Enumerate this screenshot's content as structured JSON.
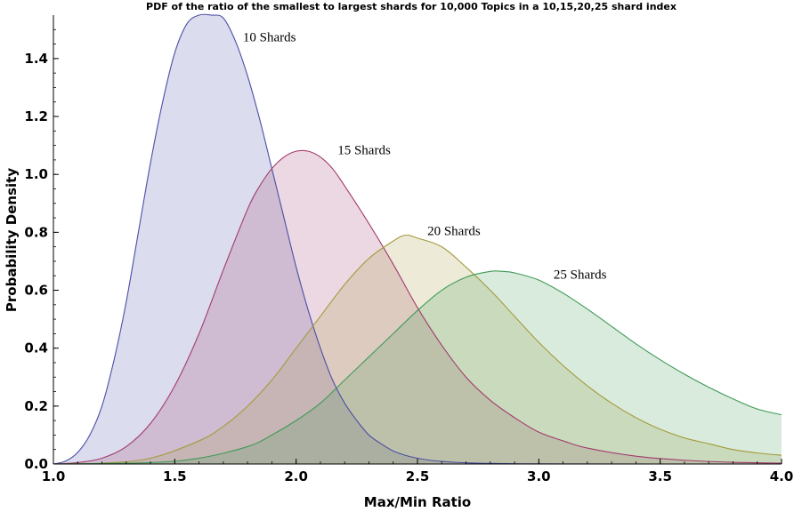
{
  "chart_data": {
    "type": "area",
    "title": "PDF of the ratio of the smallest to largest shards for 10,000 Topics in a 10,15,20,25 shard index",
    "xlabel": "Max/Min Ratio",
    "ylabel": "Probability Density",
    "xlim": [
      1.0,
      4.0
    ],
    "ylim": [
      0.0,
      1.55
    ],
    "x_ticks": [
      "1.0",
      "1.5",
      "2.0",
      "2.5",
      "3.0",
      "3.5",
      "4.0"
    ],
    "y_ticks": [
      "0.0",
      "0.2",
      "0.4",
      "0.6",
      "0.8",
      "1.0",
      "1.2",
      "1.4"
    ],
    "grid": false,
    "legend": "inline labels",
    "series": [
      {
        "name": "10 Shards",
        "color": "#4b4fa6",
        "fill": "#dcdcee",
        "label_at": [
          1.89,
          1.46
        ],
        "x": [
          1.0,
          1.05,
          1.1,
          1.15,
          1.2,
          1.25,
          1.3,
          1.35,
          1.4,
          1.45,
          1.5,
          1.55,
          1.6,
          1.65,
          1.7,
          1.75,
          1.8,
          1.85,
          1.9,
          1.95,
          2.0,
          2.05,
          2.1,
          2.15,
          2.2,
          2.25,
          2.3,
          2.35,
          2.4,
          2.45,
          2.5,
          2.55,
          2.6,
          2.7,
          2.8,
          2.9,
          3.0,
          3.2,
          3.5,
          4.0
        ],
        "y": [
          0.0,
          0.01,
          0.04,
          0.1,
          0.2,
          0.36,
          0.56,
          0.8,
          1.04,
          1.25,
          1.42,
          1.52,
          1.56,
          1.56,
          1.54,
          1.46,
          1.34,
          1.19,
          1.02,
          0.85,
          0.68,
          0.53,
          0.4,
          0.29,
          0.21,
          0.15,
          0.1,
          0.07,
          0.045,
          0.03,
          0.02,
          0.013,
          0.009,
          0.004,
          0.002,
          0.001,
          0.0005,
          0.0001,
          0.0,
          0.0
        ]
      },
      {
        "name": "15 Shards",
        "color": "#a23a6e",
        "fill": "#eed9e6",
        "label_at": [
          2.28,
          1.07
        ],
        "x": [
          1.0,
          1.1,
          1.2,
          1.3,
          1.4,
          1.5,
          1.6,
          1.7,
          1.8,
          1.85,
          1.9,
          1.95,
          2.0,
          2.05,
          2.1,
          2.15,
          2.2,
          2.3,
          2.4,
          2.5,
          2.6,
          2.7,
          2.8,
          2.9,
          3.0,
          3.1,
          3.2,
          3.4,
          3.6,
          3.8,
          4.0
        ],
        "y": [
          0.0,
          0.005,
          0.02,
          0.06,
          0.14,
          0.27,
          0.45,
          0.67,
          0.88,
          0.96,
          1.02,
          1.06,
          1.08,
          1.08,
          1.06,
          1.02,
          0.96,
          0.83,
          0.69,
          0.54,
          0.41,
          0.3,
          0.22,
          0.16,
          0.11,
          0.08,
          0.055,
          0.027,
          0.013,
          0.006,
          0.003
        ]
      },
      {
        "name": "20 Shards",
        "color": "#a39a3c",
        "fill": "#ede8d6",
        "label_at": [
          2.65,
          0.79
        ],
        "x": [
          1.0,
          1.2,
          1.4,
          1.6,
          1.7,
          1.8,
          1.9,
          2.0,
          2.1,
          2.2,
          2.3,
          2.4,
          2.45,
          2.5,
          2.6,
          2.7,
          2.8,
          2.9,
          3.0,
          3.1,
          3.2,
          3.3,
          3.4,
          3.5,
          3.6,
          3.7,
          3.8,
          3.9,
          4.0
        ],
        "y": [
          0.0,
          0.003,
          0.02,
          0.08,
          0.13,
          0.2,
          0.29,
          0.4,
          0.51,
          0.62,
          0.71,
          0.77,
          0.79,
          0.78,
          0.75,
          0.68,
          0.6,
          0.51,
          0.42,
          0.34,
          0.27,
          0.21,
          0.16,
          0.12,
          0.09,
          0.07,
          0.05,
          0.038,
          0.03
        ]
      },
      {
        "name": "25 Shards",
        "color": "#3f9a56",
        "fill": "#d5eadb",
        "label_at": [
          3.17,
          0.64
        ],
        "x": [
          1.0,
          1.4,
          1.6,
          1.8,
          1.9,
          2.0,
          2.1,
          2.2,
          2.3,
          2.4,
          2.5,
          2.6,
          2.7,
          2.8,
          2.85,
          2.9,
          3.0,
          3.1,
          3.2,
          3.3,
          3.4,
          3.5,
          3.6,
          3.7,
          3.8,
          3.9,
          4.0
        ],
        "y": [
          0.0,
          0.005,
          0.02,
          0.06,
          0.1,
          0.15,
          0.21,
          0.29,
          0.37,
          0.45,
          0.53,
          0.6,
          0.645,
          0.665,
          0.665,
          0.66,
          0.635,
          0.59,
          0.535,
          0.475,
          0.415,
          0.36,
          0.31,
          0.265,
          0.225,
          0.19,
          0.17
        ]
      }
    ]
  }
}
